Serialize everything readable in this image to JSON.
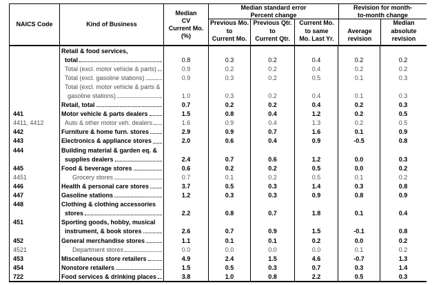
{
  "header": {
    "naics": "NAICS Code",
    "business": "Kind of Business",
    "median_cv_lines": [
      "Median",
      "CV",
      "Current Mo.",
      "(%)"
    ],
    "group_standard_error": {
      "title_lines": [
        "Median standard error",
        "Percent change"
      ],
      "columns": [
        [
          "Previous Mo.",
          "to",
          "Current Mo."
        ],
        [
          "Previous Qtr.",
          "to",
          "Current Qtr."
        ],
        [
          "Current Mo.",
          "to same",
          "Mo. Last Yr."
        ]
      ]
    },
    "group_revision": {
      "title_lines": [
        "Revision for month-",
        "to-month change"
      ],
      "columns": [
        [
          "Average",
          "revision"
        ],
        [
          "Median",
          "absolute",
          "revision"
        ]
      ]
    }
  },
  "colors": {
    "border": "#000000",
    "bold_text": "#000000",
    "regular_text": "#4f4f4f"
  },
  "table": {
    "value_columns": [
      "Median CV Current Mo. (%)",
      "Previous Mo. to Current Mo.",
      "Previous Qtr. to Current Qtr.",
      "Current Mo. to same Mo. Last Yr.",
      "Average revision",
      "Median absolute revision"
    ],
    "rows": [
      {
        "code": "",
        "label": "Retail & food services,",
        "indent": 0,
        "leader": false,
        "style": "lblbold",
        "values": [
          "",
          "",
          "",
          "",
          "",
          ""
        ]
      },
      {
        "code": "",
        "label": "total",
        "indent": 1,
        "leader": true,
        "style": "lblbold",
        "values": [
          "0.8",
          "0.3",
          "0.2",
          "0.4",
          "0.2",
          "0.2"
        ]
      },
      {
        "code": "",
        "label": "Total (excl. motor vehicle & parts)",
        "indent": 1,
        "leader": true,
        "style": "plain",
        "values": [
          "0.9",
          "0.2",
          "0.2",
          "0.4",
          "0.2",
          "0.2"
        ]
      },
      {
        "code": "",
        "label": "Total (excl. gasoline stations)",
        "indent": 1,
        "leader": true,
        "style": "plain",
        "values": [
          "0.9",
          "0.3",
          "0.2",
          "0.5",
          "0.1",
          "0.3"
        ]
      },
      {
        "code": "",
        "label": "Total (excl. motor vehicle & parts &",
        "indent": 1,
        "leader": false,
        "style": "plain",
        "values": [
          "",
          "",
          "",
          "",
          "",
          ""
        ]
      },
      {
        "code": "",
        "label": "gasoline stations)",
        "indent": 2,
        "leader": true,
        "style": "plain",
        "values": [
          "1.0",
          "0.3",
          "0.2",
          "0.4",
          "0.1",
          "0.3"
        ]
      },
      {
        "code": "",
        "label": "Retail, total",
        "indent": 0,
        "leader": true,
        "style": "bold",
        "values": [
          "0.7",
          "0.2",
          "0.2",
          "0.4",
          "0.2",
          "0.3"
        ]
      },
      {
        "code": "441",
        "label": "Motor vehicle & parts dealers",
        "indent": 0,
        "leader": true,
        "style": "bold",
        "values": [
          "1.5",
          "0.8",
          "0.4",
          "1.2",
          "0.2",
          "0.5"
        ]
      },
      {
        "code": "4411, 4412",
        "label": "Auto & other motor veh. dealers",
        "indent": 1,
        "leader": true,
        "style": "plain",
        "values": [
          "1.6",
          "0.9",
          "0.4",
          "1.3",
          "0.2",
          "0.5"
        ]
      },
      {
        "code": "442",
        "label": "Furniture & home furn. stores",
        "indent": 0,
        "leader": true,
        "style": "bold",
        "values": [
          "2.9",
          "0.9",
          "0.7",
          "1.6",
          "0.1",
          "0.9"
        ]
      },
      {
        "code": "443",
        "label": "Electronics & appliance stores",
        "indent": 0,
        "leader": true,
        "style": "bold",
        "values": [
          "2.0",
          "0.6",
          "0.4",
          "0.9",
          "-0.5",
          "0.8"
        ]
      },
      {
        "code": "444",
        "label": "Building material & garden eq. &",
        "indent": 0,
        "leader": false,
        "style": "bold",
        "values": [
          "",
          "",
          "",
          "",
          "",
          ""
        ]
      },
      {
        "code": "",
        "label": "supplies dealers",
        "indent": 1,
        "leader": true,
        "style": "bold",
        "values": [
          "2.4",
          "0.7",
          "0.6",
          "1.2",
          "0.0",
          "0.3"
        ]
      },
      {
        "code": "445",
        "label": "Food & beverage stores",
        "indent": 0,
        "leader": true,
        "style": "bold",
        "values": [
          "0.6",
          "0.2",
          "0.2",
          "0.5",
          "0.0",
          "0.2"
        ]
      },
      {
        "code": "4451",
        "label": "Grocery stores",
        "indent": 3,
        "leader": true,
        "style": "plain",
        "values": [
          "0.7",
          "0.1",
          "0.2",
          "0.5",
          "0.1",
          "0.2"
        ]
      },
      {
        "code": "446",
        "label": "Health & personal care stores",
        "indent": 0,
        "leader": true,
        "style": "bold",
        "values": [
          "3.7",
          "0.5",
          "0.3",
          "1.4",
          "0.3",
          "0.8"
        ]
      },
      {
        "code": "447",
        "label": "Gasoline stations",
        "indent": 0,
        "leader": true,
        "style": "bold",
        "values": [
          "1.2",
          "0.3",
          "0.3",
          "0.9",
          "0.8",
          "0.9"
        ]
      },
      {
        "code": "448",
        "label": "Clothing & clothing accessories",
        "indent": 0,
        "leader": false,
        "style": "bold",
        "values": [
          "",
          "",
          "",
          "",
          "",
          ""
        ]
      },
      {
        "code": "",
        "label": "stores",
        "indent": 1,
        "leader": true,
        "style": "bold",
        "values": [
          "2.2",
          "0.8",
          "0.7",
          "1.8",
          "0.1",
          "0.4"
        ]
      },
      {
        "code": "451",
        "label": "Sporting goods, hobby, musical",
        "indent": 0,
        "leader": false,
        "style": "bold",
        "values": [
          "",
          "",
          "",
          "",
          "",
          ""
        ]
      },
      {
        "code": "",
        "label": "instrument, & book stores",
        "indent": 1,
        "leader": true,
        "style": "bold",
        "values": [
          "2.6",
          "0.7",
          "0.9",
          "1.5",
          "-0.1",
          "0.8"
        ]
      },
      {
        "code": "452",
        "label": "General merchandise stores",
        "indent": 0,
        "leader": true,
        "style": "bold",
        "values": [
          "1.1",
          "0.1",
          "0.1",
          "0.2",
          "0.0",
          "0.2"
        ]
      },
      {
        "code": "4521",
        "label": "Department stores",
        "indent": 3,
        "leader": true,
        "style": "plain",
        "values": [
          "0.0",
          "0.0",
          "0.0",
          "0.0",
          "0.1",
          "0.2"
        ]
      },
      {
        "code": "453",
        "label": "Miscellaneous store retailers",
        "indent": 0,
        "leader": true,
        "style": "bold",
        "values": [
          "4.9",
          "2.4",
          "1.5",
          "4.6",
          "-0.7",
          "1.3"
        ]
      },
      {
        "code": "454",
        "label": "Nonstore retailers",
        "indent": 0,
        "leader": true,
        "style": "bold",
        "values": [
          "1.5",
          "0.5",
          "0.3",
          "0.7",
          "0.3",
          "1.4"
        ]
      },
      {
        "code": "722",
        "label": "Food services & drinking places",
        "indent": 0,
        "leader": true,
        "style": "bold",
        "values": [
          "3.8",
          "1.0",
          "0.8",
          "2.2",
          "0.5",
          "0.3"
        ]
      }
    ]
  }
}
